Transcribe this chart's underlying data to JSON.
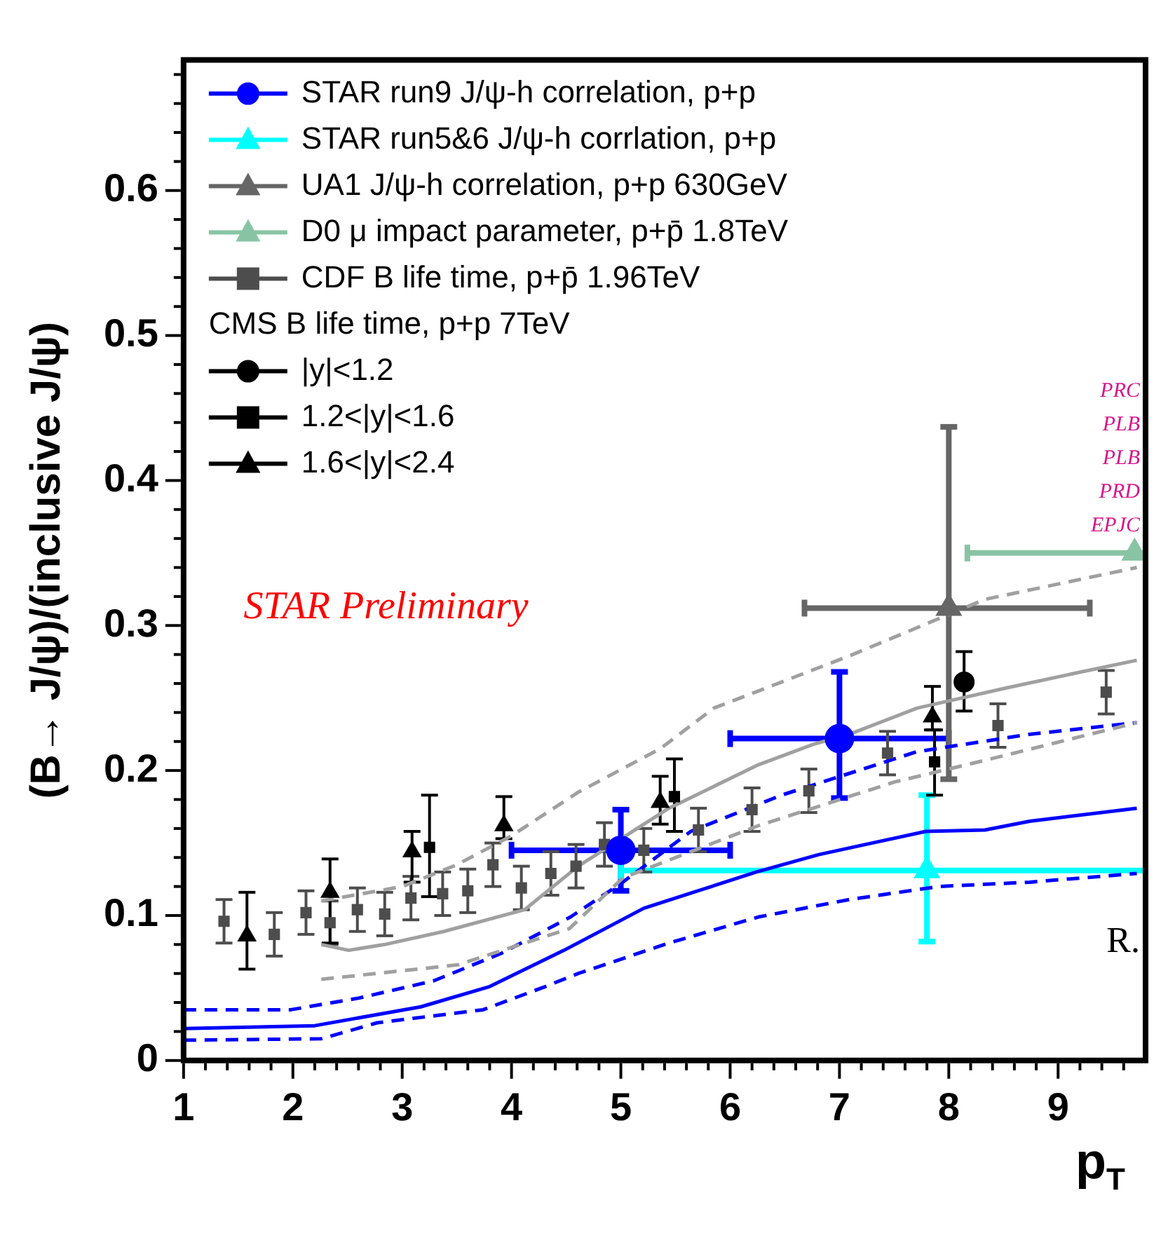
{
  "chart_data": {
    "type": "scatter",
    "ylabel": "(B→ J/ψ)/(inclusive J/ψ)",
    "xlabel": "p$_{T}$",
    "legend": "top left",
    "legend_title": "CMS B life time, p+p 7TeV",
    "grid": false,
    "xlim": [
      1,
      9.8
    ],
    "ylim": [
      0,
      0.69
    ],
    "xticks": [
      1,
      {
        "value": 1.2,
        "label": null
      },
      {
        "value": 1.4,
        "label": null
      },
      {
        "value": 1.6,
        "label": null
      },
      {
        "value": 1.8,
        "label": null
      },
      2,
      {
        "value": 2.2,
        "label": null
      },
      {
        "value": 2.4,
        "label": null
      },
      {
        "value": 2.6,
        "label": null
      },
      {
        "value": 2.8,
        "label": null
      },
      3,
      {
        "value": 3.2,
        "label": null
      },
      {
        "value": 3.4,
        "label": null
      },
      {
        "value": 3.6,
        "label": null
      },
      {
        "value": 3.8,
        "label": null
      },
      4,
      {
        "value": 4.2,
        "label": null
      },
      {
        "value": 4.4,
        "label": null
      },
      {
        "value": 4.6,
        "label": null
      },
      {
        "value": 4.8,
        "label": null
      },
      5,
      {
        "value": 5.2,
        "label": null
      },
      {
        "value": 5.4,
        "label": null
      },
      {
        "value": 5.6,
        "label": null
      },
      {
        "value": 5.8,
        "label": null
      },
      6,
      {
        "value": 6.2,
        "label": null
      },
      {
        "value": 6.4,
        "label": null
      },
      {
        "value": 6.6,
        "label": null
      },
      {
        "value": 6.8,
        "label": null
      },
      7,
      {
        "value": 7.2,
        "label": null
      },
      {
        "value": 7.4,
        "label": null
      },
      {
        "value": 7.6,
        "label": null
      },
      {
        "value": 7.8,
        "label": null
      },
      8,
      {
        "value": 8.2,
        "label": null
      },
      {
        "value": 8.4,
        "label": null
      },
      {
        "value": 8.6,
        "label": null
      },
      {
        "value": 8.8,
        "label": null
      },
      9,
      {
        "value": 9.2,
        "label": null
      },
      {
        "value": 9.4,
        "label": null
      },
      {
        "value": 9.6,
        "label": null
      }
    ],
    "yticks": [
      0,
      {
        "value": 0.02,
        "label": null
      },
      {
        "value": 0.04,
        "label": null
      },
      {
        "value": 0.06,
        "label": null
      },
      {
        "value": 0.08,
        "label": null
      },
      0.1,
      {
        "value": 0.12,
        "label": null
      },
      {
        "value": 0.14,
        "label": null
      },
      {
        "value": 0.16,
        "label": null
      },
      {
        "value": 0.18,
        "label": null
      },
      0.2,
      {
        "value": 0.22,
        "label": null
      },
      {
        "value": 0.24,
        "label": null
      },
      {
        "value": 0.26,
        "label": null
      },
      {
        "value": 0.28,
        "label": null
      },
      0.3,
      {
        "value": 0.32,
        "label": null
      },
      {
        "value": 0.34,
        "label": null
      },
      {
        "value": 0.36,
        "label": null
      },
      {
        "value": 0.38,
        "label": null
      },
      0.4,
      {
        "value": 0.42,
        "label": null
      },
      {
        "value": 0.44,
        "label": null
      },
      {
        "value": 0.46,
        "label": null
      },
      {
        "value": 0.48,
        "label": null
      },
      0.5,
      {
        "value": 0.52,
        "label": null
      },
      {
        "value": 0.54,
        "label": null
      },
      {
        "value": 0.56,
        "label": null
      },
      {
        "value": 0.58,
        "label": null
      },
      0.6,
      {
        "value": 0.62,
        "label": null
      },
      {
        "value": 0.64,
        "label": null
      },
      {
        "value": 0.66,
        "label": null
      },
      {
        "value": 0.68,
        "label": null
      }
    ],
    "annotations": [
      "STAR Preliminary",
      "PRC",
      "PLB",
      "PLB",
      "PRD",
      "EPJC",
      "R."
    ],
    "series": [
      {
        "name": "STAR run9 J/ψ-h correlation, p+p",
        "type": "scatter",
        "marker": "circle",
        "color": "#0000ff",
        "x": [
          5,
          7
        ],
        "values": [
          0.145,
          0.222
        ],
        "errors": [
          [
            0.117,
            0.173
          ],
          [
            0.181,
            0.268
          ]
        ],
        "xerrors": [
          [
            4,
            6
          ],
          [
            6,
            8
          ]
        ]
      },
      {
        "name": "STAR run5&6 J/ψ-h corrlation, p+p",
        "type": "scatter",
        "marker": "triangle",
        "color": "#00ffff",
        "x": [
          7.8
        ],
        "values": [
          0.131
        ],
        "errors": [
          [
            0.082,
            0.183
          ]
        ],
        "xerrors": [
          [
            5,
            9.8
          ]
        ]
      },
      {
        "name": "UA1 J/ψ-h correlation, p+p 630GeV",
        "type": "scatter",
        "marker": "triangle",
        "color": "#666666",
        "x": [
          8
        ],
        "values": [
          0.312
        ],
        "errors": [
          [
            0.194,
            0.437
          ]
        ],
        "xerrors": [
          [
            6.68,
            9.29
          ]
        ]
      },
      {
        "name": "D0 μ impact parameter, p+p̄ 1.8TeV",
        "type": "scatter",
        "marker": "triangle",
        "color": "#88c4a4",
        "x": [
          9.7
        ],
        "values": [
          0.35
        ],
        "xerrors": [
          [
            8.17,
            9.8
          ]
        ]
      },
      {
        "name": "CDF B life time, p+p̄ 1.96TeV",
        "type": "scatter",
        "marker": "square",
        "color": "#4d4d4d",
        "x": [
          1.37,
          1.83,
          2.12,
          2.34,
          2.59,
          2.84,
          3.08,
          3.37,
          3.6,
          3.83,
          4.09,
          4.36,
          4.59,
          4.85,
          5.21,
          5.71,
          6.2,
          6.72,
          7.44,
          8.45,
          9.44
        ],
        "values": [
          0.096,
          0.087,
          0.102,
          0.095,
          0.104,
          0.101,
          0.112,
          0.115,
          0.117,
          0.135,
          0.119,
          0.129,
          0.134,
          0.149,
          0.145,
          0.159,
          0.173,
          0.186,
          0.212,
          0.231,
          0.254
        ],
        "errors": [
          0.015,
          0.015,
          0.015,
          0.015,
          0.015,
          0.015,
          0.015,
          0.015,
          0.015,
          0.015,
          0.015,
          0.015,
          0.015,
          0.015,
          0.015,
          0.015,
          0.015,
          0.015,
          0.015,
          0.015,
          0.015
        ]
      },
      {
        "name": "|y|<1.2",
        "type": "scatter",
        "marker": "circle",
        "color": "#000000",
        "x": [
          8.14
        ],
        "values": [
          0.261
        ],
        "errors": [
          [
            0.241,
            0.282
          ]
        ]
      },
      {
        "name": "1.2<|y|<1.6",
        "type": "scatter",
        "marker": "square",
        "color": "#000000",
        "x": [
          3.25,
          5.49,
          7.87
        ],
        "values": [
          0.147,
          0.182,
          0.206
        ],
        "errors": [
          [
            0.113,
            0.183
          ],
          [
            0.158,
            0.208
          ],
          [
            0.183,
            0.228
          ]
        ]
      },
      {
        "name": "1.6<|y|<2.4",
        "type": "scatter",
        "marker": "triangle",
        "color": "#000000",
        "x": [
          1.58,
          2.34,
          3.09,
          3.93,
          5.36,
          7.85
        ],
        "values": [
          0.086,
          0.116,
          0.144,
          0.162,
          0.178,
          0.237
        ],
        "errors": [
          [
            0.063,
            0.116
          ],
          [
            0.081,
            0.139
          ],
          [
            0.123,
            0.158
          ],
          [
            0.153,
            0.182
          ],
          [
            0.163,
            0.196
          ],
          [
            0.228,
            0.258
          ]
        ]
      },
      {
        "type": "line",
        "line_style": "solid",
        "color": "#a0a0a0",
        "x": [
          2.26,
          2.51,
          2.84,
          3.38,
          4.12,
          4.61,
          5.44,
          6.26,
          6.76,
          7.09,
          7.71,
          8.0,
          8.53,
          9.15,
          9.72
        ],
        "values": [
          0.08,
          0.076,
          0.08,
          0.089,
          0.104,
          0.134,
          0.174,
          0.204,
          0.218,
          0.225,
          0.243,
          0.248,
          0.257,
          0.267,
          0.276
        ]
      },
      {
        "type": "line",
        "line_style": "dashed",
        "color": "#a0a0a0",
        "x": [
          2.26,
          3,
          3.5,
          4,
          4.61,
          5.36,
          5.85,
          7.09,
          8.33,
          9.72
        ],
        "values": [
          0.11,
          0.12,
          0.135,
          0.155,
          0.185,
          0.215,
          0.243,
          0.279,
          0.318,
          0.34
        ]
      },
      {
        "type": "line",
        "line_style": "dashed",
        "color": "#a0a0a0",
        "x": [
          2.26,
          3.51,
          4.53,
          5.02,
          6.26,
          7.5,
          8.33,
          9.72
        ],
        "values": [
          0.056,
          0.066,
          0.091,
          0.126,
          0.162,
          0.192,
          0.207,
          0.233
        ]
      },
      {
        "type": "line",
        "line_style": "solid",
        "color": "#0000ff",
        "x": [
          1,
          2.2,
          3.17,
          3.8,
          4.48,
          5.21,
          6.24,
          6.81,
          7.79,
          8.33,
          8.74,
          9.72
        ],
        "values": [
          0.022,
          0.024,
          0.037,
          0.051,
          0.076,
          0.105,
          0.13,
          0.142,
          0.158,
          0.159,
          0.165,
          0.174
        ]
      },
      {
        "type": "line",
        "line_style": "dashed",
        "color": "#0000ff",
        "x": [
          1,
          1.98,
          2.6,
          3.29,
          3.91,
          4.54,
          5,
          5.64,
          6.47,
          7.71,
          8.74,
          9.72
        ],
        "values": [
          0.035,
          0.035,
          0.043,
          0.055,
          0.074,
          0.099,
          0.122,
          0.158,
          0.183,
          0.213,
          0.225,
          0.233
        ]
      },
      {
        "type": "line",
        "line_style": "dashed",
        "color": "#0000ff",
        "x": [
          1,
          2.26,
          2.77,
          3.74,
          4.31,
          4.61,
          5.44,
          6.26,
          7.09,
          7.91,
          8.74,
          9.72
        ],
        "values": [
          0.014,
          0.015,
          0.026,
          0.035,
          0.051,
          0.06,
          0.081,
          0.099,
          0.111,
          0.12,
          0.123,
          0.129
        ]
      }
    ]
  }
}
